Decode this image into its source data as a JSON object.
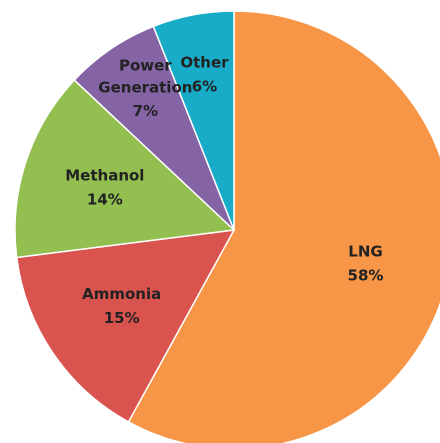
{
  "chart_data": {
    "type": "pie",
    "categories": [
      "LNG",
      "Ammonia",
      "Methanol",
      "Power Generation",
      "Other"
    ],
    "values": [
      58,
      15,
      14,
      7,
      6
    ],
    "value_labels": [
      "58%",
      "15%",
      "14%",
      "7%",
      "6%"
    ],
    "colors": [
      "#f79646",
      "#d9534f",
      "#92bf50",
      "#8564a5",
      "#18acc9"
    ]
  }
}
